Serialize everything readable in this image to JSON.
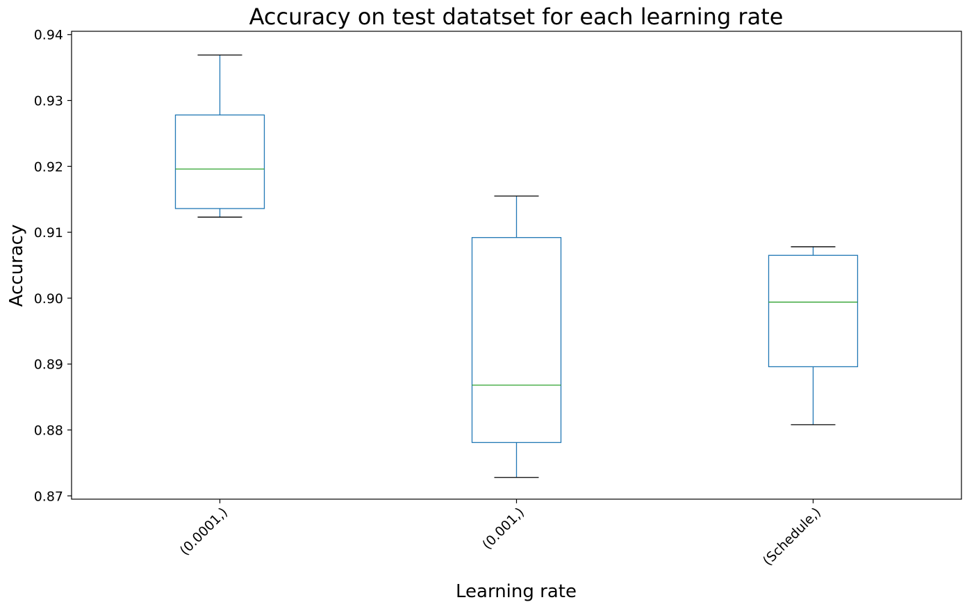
{
  "chart_data": {
    "type": "box",
    "title": "Accuracy on test datatset for each learning rate",
    "xlabel": "Learning rate",
    "ylabel": "Accuracy",
    "ylim": [
      0.8695,
      0.9405
    ],
    "yticks": [
      0.87,
      0.88,
      0.89,
      0.9,
      0.91,
      0.92,
      0.93,
      0.94
    ],
    "ytick_labels": [
      "0.87",
      "0.88",
      "0.89",
      "0.90",
      "0.91",
      "0.92",
      "0.93",
      "0.94"
    ],
    "categories": [
      "(0.0001,)",
      "(0.001,)",
      "(Schedule,)"
    ],
    "boxes": [
      {
        "whisker_low": 0.9123,
        "q1": 0.9136,
        "median": 0.9196,
        "q3": 0.9278,
        "whisker_high": 0.9369
      },
      {
        "whisker_low": 0.8728,
        "q1": 0.8781,
        "median": 0.8868,
        "q3": 0.9092,
        "whisker_high": 0.9155
      },
      {
        "whisker_low": 0.8808,
        "q1": 0.8896,
        "median": 0.8994,
        "q3": 0.9065,
        "whisker_high": 0.9078
      }
    ],
    "grid": false,
    "legend": "none",
    "colors": {
      "box": "#1f77b4",
      "median": "#2ca02c",
      "cap": "#000000",
      "axes": "#000000"
    }
  }
}
